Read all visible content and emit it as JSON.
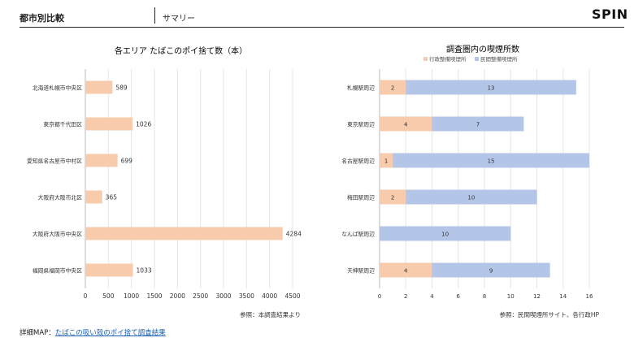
{
  "header": {
    "title": "都市別比較",
    "subtitle": "サマリー",
    "logo": "SPIN"
  },
  "footer": {
    "label": "詳細MAP：",
    "link_text": "たばこの吸い殻のポイ捨て調査結果"
  },
  "colors": {
    "peach": "#f7cbac",
    "blue": "#b4c6e7",
    "grid": "#e5e5e5"
  },
  "chart_data": [
    {
      "type": "bar",
      "orientation": "horizontal",
      "title": "各エリア たばこのポイ捨て数（本）",
      "categories": [
        "北海道札幌市中央区",
        "東京都千代田区",
        "愛知県名古屋市中村区",
        "大阪府大阪市北区",
        "大阪府大阪市中央区",
        "福岡県福岡市中央区"
      ],
      "values": [
        589,
        1026,
        699,
        365,
        4284,
        1033
      ],
      "xlim": [
        0,
        4500
      ],
      "xticks": [
        0,
        500,
        1000,
        1500,
        2000,
        2500,
        3000,
        3500,
        4000,
        4500
      ],
      "grid": true,
      "note": "参照：本調査結果より"
    },
    {
      "type": "bar",
      "orientation": "horizontal",
      "stacked": true,
      "title": "調査圏内の喫煙所数",
      "categories": [
        "札幌駅周辺",
        "東京駅周辺",
        "名古屋駅周辺",
        "梅田駅周辺",
        "なんば駅周辺",
        "天神駅周辺"
      ],
      "series": [
        {
          "name": "行政整備喫煙所",
          "values": [
            2,
            4,
            1,
            2,
            0,
            4
          ]
        },
        {
          "name": "民間整備喫煙所",
          "values": [
            13,
            7,
            15,
            10,
            10,
            9
          ]
        }
      ],
      "xlim": [
        0,
        16
      ],
      "xticks": [
        0,
        2,
        4,
        6,
        8,
        10,
        12,
        14,
        16
      ],
      "legend": "top-center",
      "grid": true,
      "note": "参照：民間喫煙所サイト、各行政HP"
    }
  ]
}
